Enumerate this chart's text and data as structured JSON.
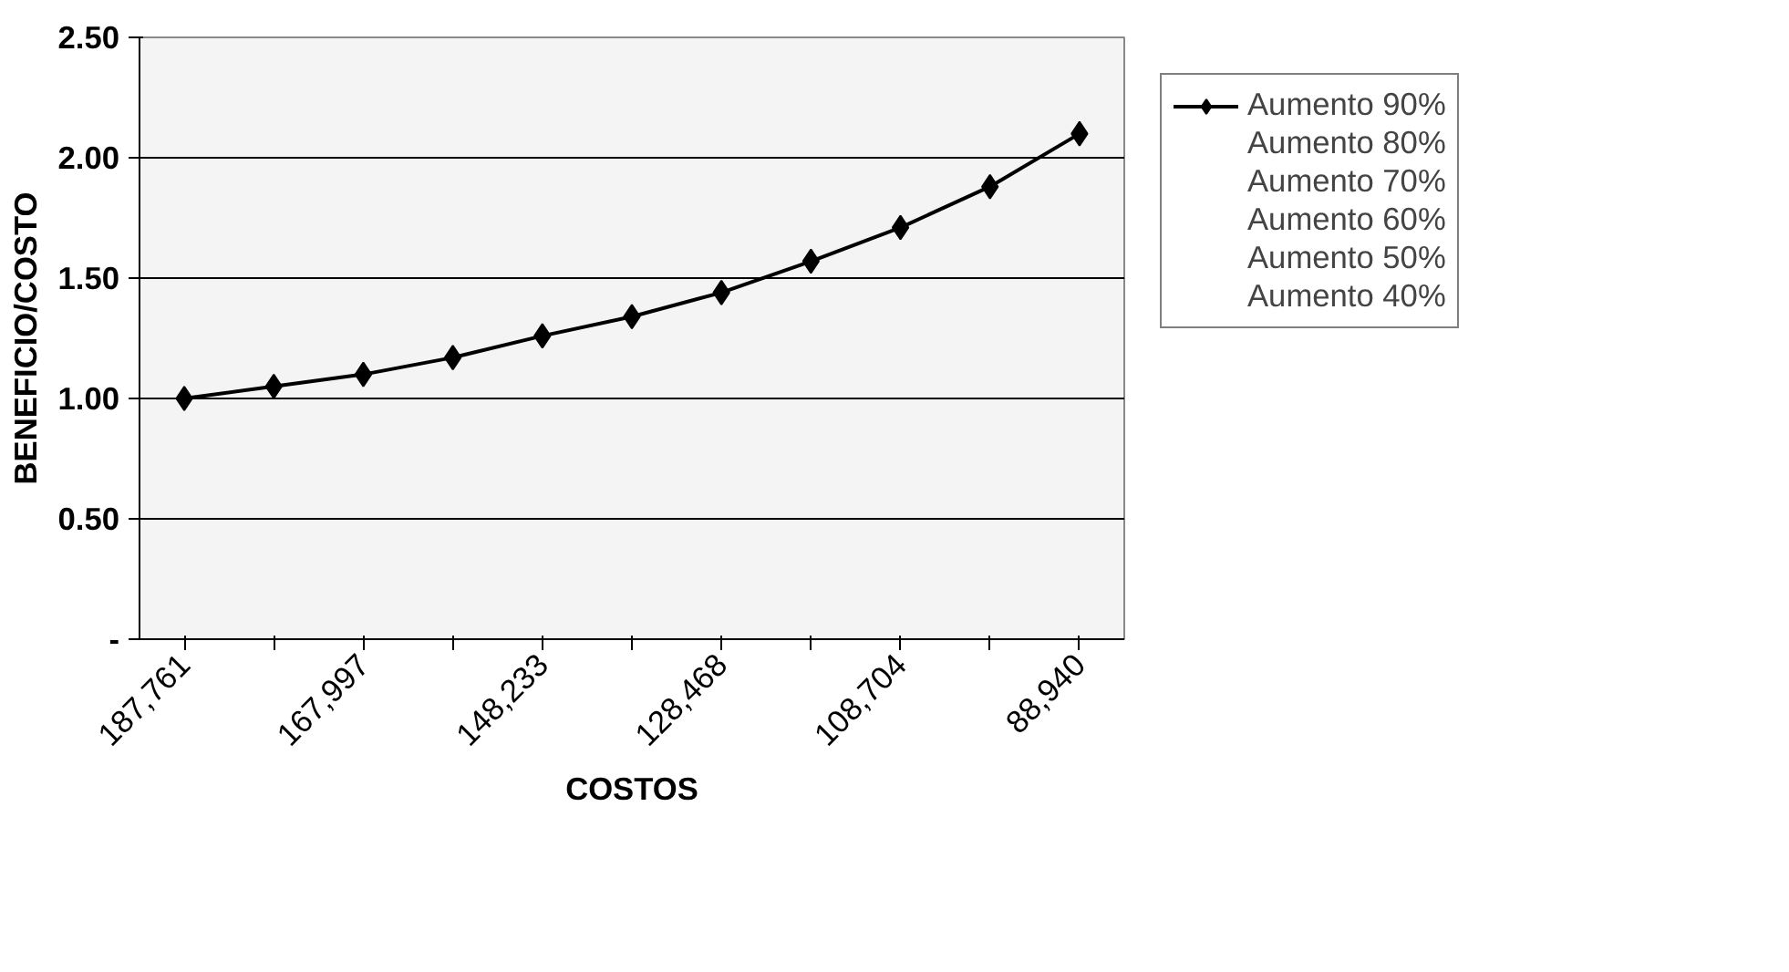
{
  "chart_data": {
    "type": "line",
    "xlabel": "COSTOS",
    "ylabel": "BENEFICIO/COSTO",
    "categories": [
      "187,761",
      null,
      "167,997",
      null,
      "148,233",
      null,
      "128,468",
      null,
      "108,704",
      null,
      "88,940"
    ],
    "series": [
      {
        "name": "Aumento 90%",
        "color": "#000000",
        "values": [
          1.0,
          1.05,
          1.1,
          1.17,
          1.26,
          1.34,
          1.44,
          1.57,
          1.71,
          1.88,
          2.1
        ]
      }
    ],
    "ylim": [
      0,
      2.5
    ],
    "yticks": [
      {
        "value": 0,
        "label": "-"
      },
      {
        "value": 0.5,
        "label": "0.50"
      },
      {
        "value": 1,
        "label": "1.00"
      },
      {
        "value": 1.5,
        "label": "1.50"
      },
      {
        "value": 2,
        "label": "2.00"
      },
      {
        "value": 2.5,
        "label": "2.50"
      }
    ],
    "grid": "y",
    "legend": "right",
    "marker": "diamond",
    "line_style": "solid",
    "annotations": [
      "Aumento 80%",
      "Aumento 70%",
      "Aumento 60%",
      "Aumento 50%",
      "Aumento 40%"
    ]
  }
}
